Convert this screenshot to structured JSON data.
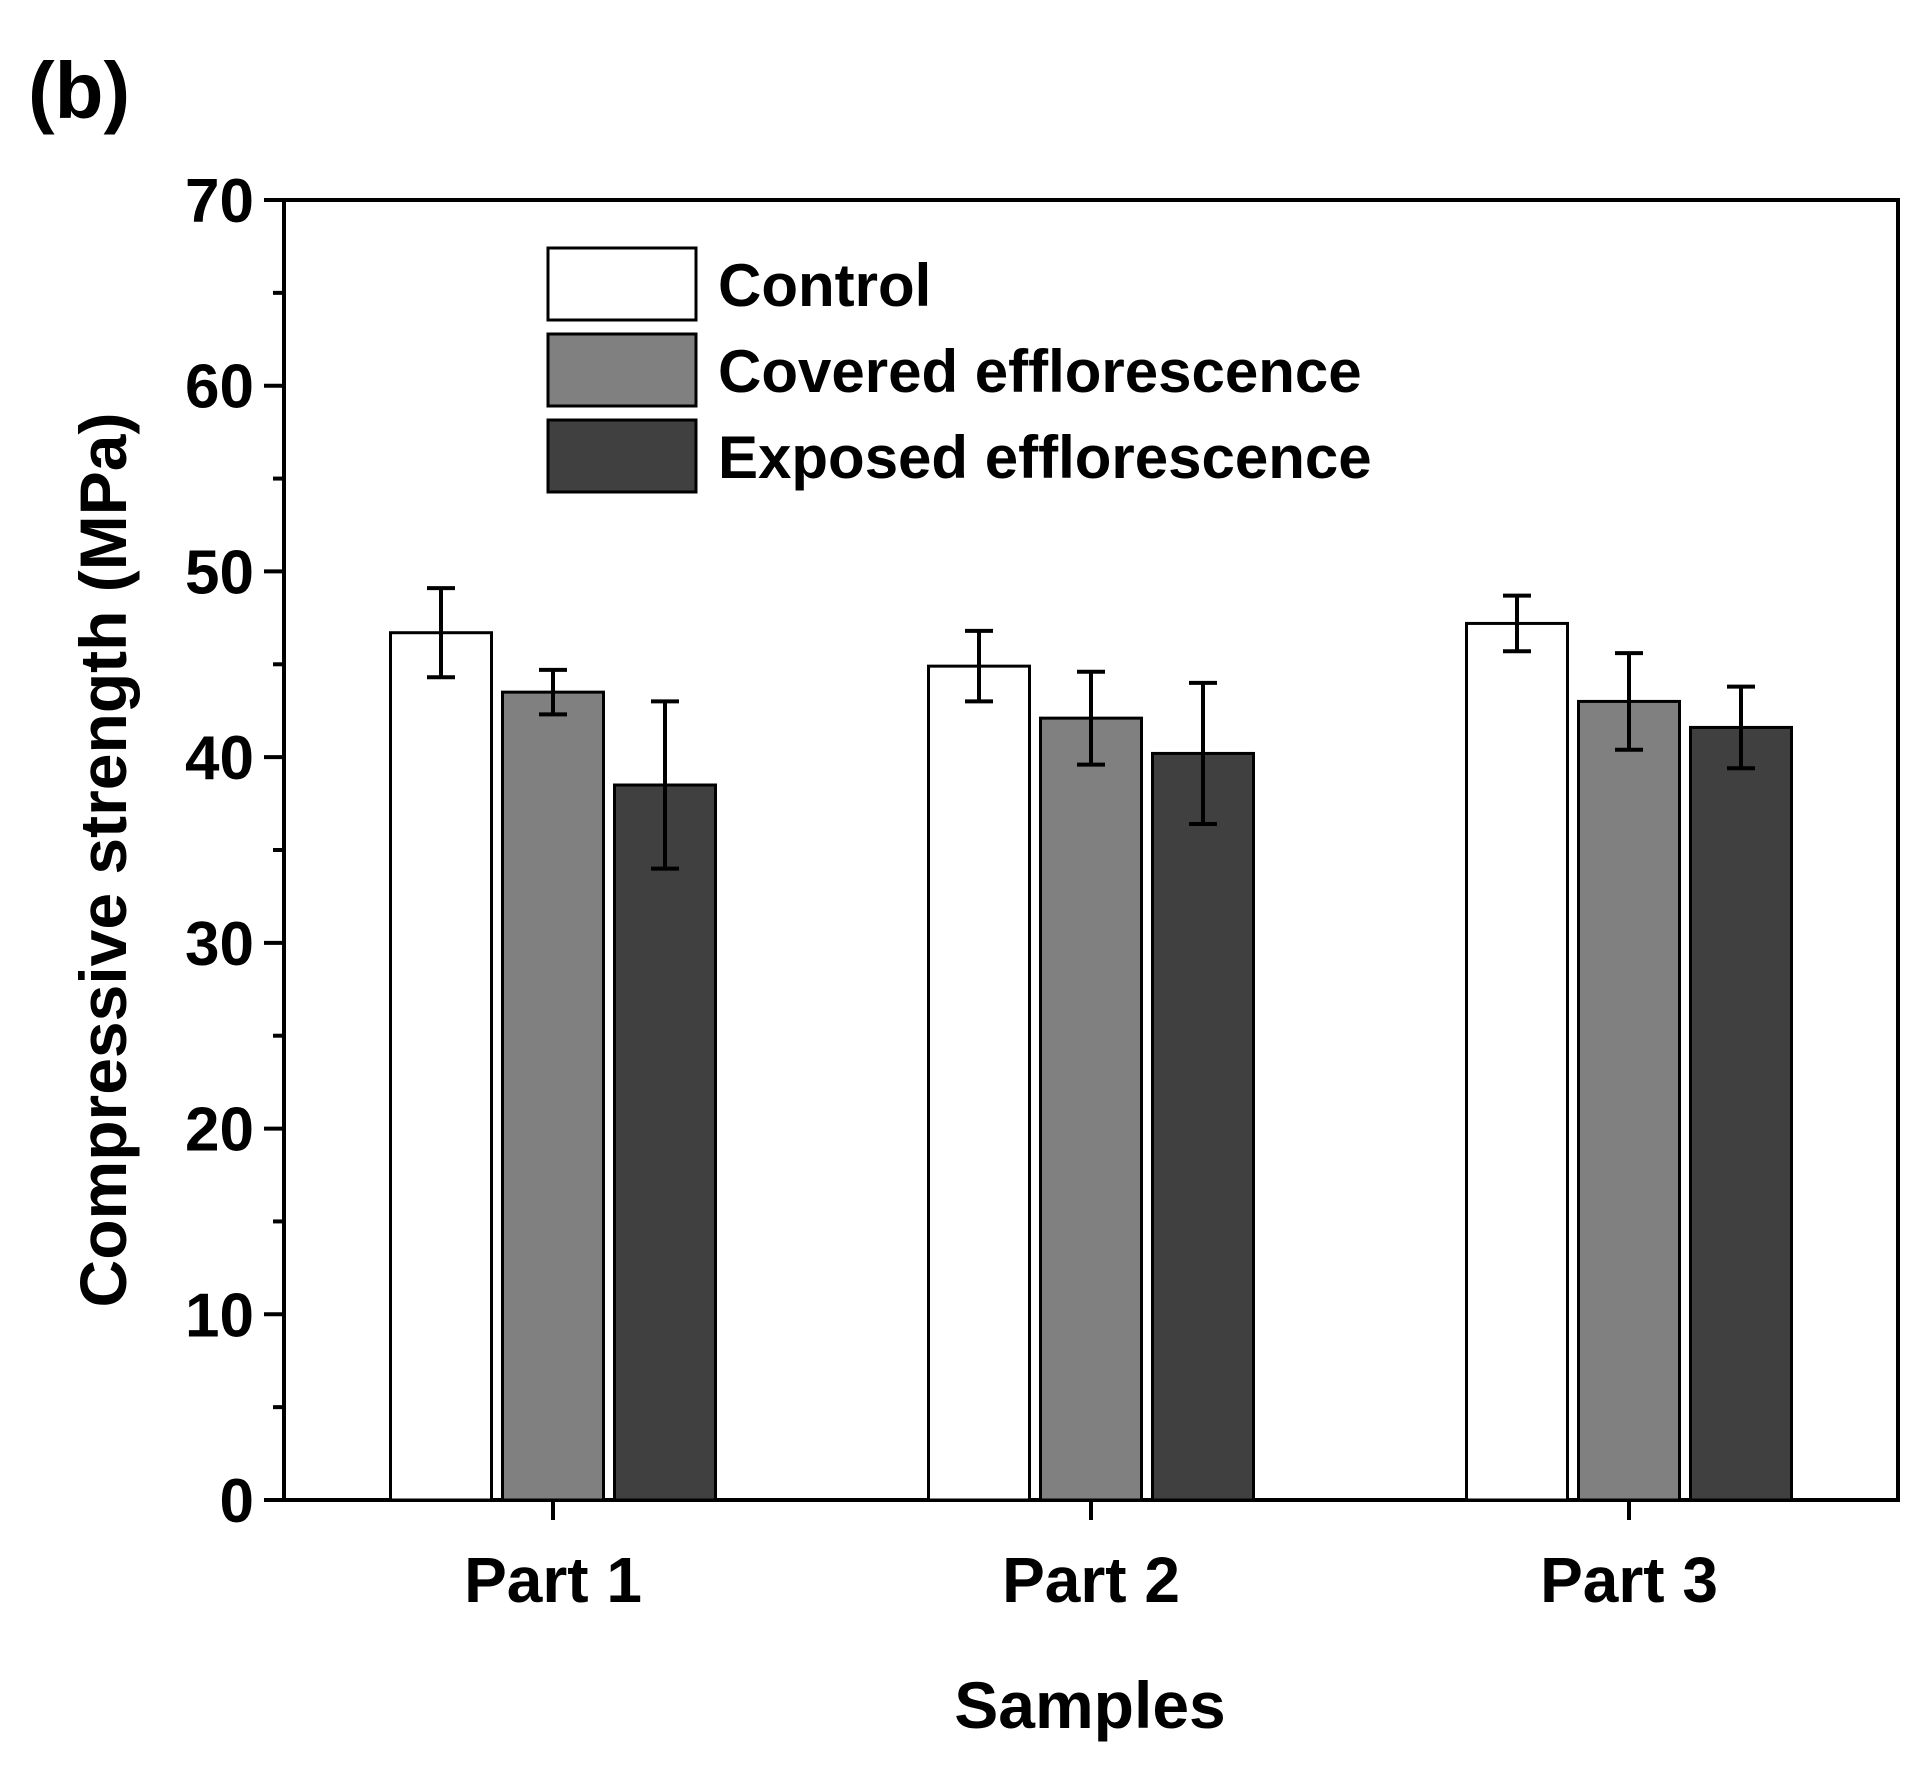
{
  "panel_label": "(b)",
  "chart_data": {
    "type": "bar",
    "title": "",
    "xlabel": "Samples",
    "ylabel": "Compressive strength (MPa)",
    "ylim": [
      0,
      70
    ],
    "yticks": [
      0,
      10,
      20,
      30,
      40,
      50,
      60,
      70
    ],
    "ytick_labels": [
      "0",
      "10",
      "20",
      "30",
      "40",
      "50",
      "60",
      "70"
    ],
    "minor_tick_step": 5,
    "grid": false,
    "legend_position": "top-left inside",
    "categories": [
      "Part 1",
      "Part 2",
      "Part 3"
    ],
    "series": [
      {
        "name": "Control",
        "color": "#ffffff",
        "values": [
          46.7,
          44.9,
          47.2
        ],
        "errors": [
          2.4,
          1.9,
          1.5
        ]
      },
      {
        "name": "Covered efflorescence",
        "color": "#808080",
        "values": [
          43.5,
          42.1,
          43.0
        ],
        "errors": [
          1.2,
          2.5,
          2.6
        ]
      },
      {
        "name": "Exposed efflorescence",
        "color": "#404040",
        "values": [
          38.5,
          40.2,
          41.6
        ],
        "errors": [
          4.5,
          3.8,
          2.2
        ]
      }
    ]
  }
}
